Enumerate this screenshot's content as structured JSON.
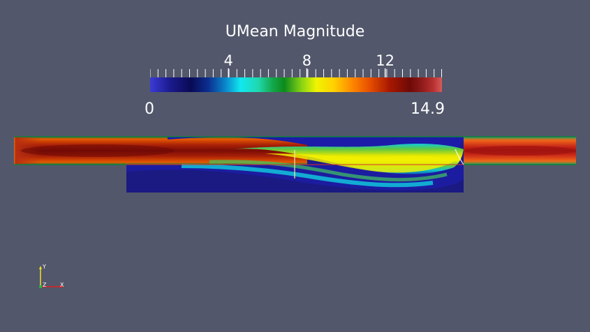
{
  "legend": {
    "title": "UMean Magnitude",
    "range_min": "0",
    "range_max": "14.9",
    "major_ticks": [
      {
        "label": "4",
        "value": 4
      },
      {
        "label": "8",
        "value": 8
      },
      {
        "label": "12",
        "value": 12
      }
    ],
    "min_value": 0,
    "max_value": 14.9,
    "colormap": [
      "#3b3bd6",
      "#1a1a8c",
      "#0a0a55",
      "#0b2f90",
      "#0a8acc",
      "#10e8f0",
      "#20d8b0",
      "#13a84a",
      "#0d8a1c",
      "#8ad414",
      "#f0f400",
      "#ffd000",
      "#ff8a00",
      "#e85000",
      "#a81800",
      "#6e0a06",
      "#8e1a1a",
      "#b83030",
      "#d65a5a"
    ]
  },
  "axes_triad": {
    "x": "X",
    "y": "Y",
    "z": "Z"
  },
  "colors": {
    "background": "#52576b"
  }
}
